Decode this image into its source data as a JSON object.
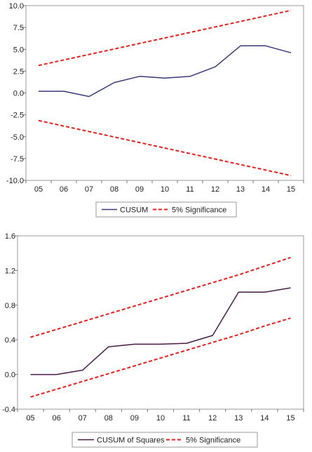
{
  "chart_data": [
    {
      "type": "line",
      "title": "",
      "xlabel": "",
      "ylabel": "",
      "categories": [
        "05",
        "06",
        "07",
        "08",
        "09",
        "10",
        "11",
        "12",
        "13",
        "14",
        "15"
      ],
      "ylim": [
        -10.0,
        10.0
      ],
      "yticks": [
        "10.0",
        "7.5",
        "5.0",
        "2.5",
        "0.0",
        "-2.5",
        "-5.0",
        "-7.5",
        "-10.0"
      ],
      "ytick_values": [
        10.0,
        7.5,
        5.0,
        2.5,
        0.0,
        -2.5,
        -5.0,
        -7.5,
        -10.0
      ],
      "grid": false,
      "legend_position": "bottom",
      "series": [
        {
          "name": "CUSUM",
          "color": "#3a3a7a",
          "style": "solid",
          "values": [
            0.2,
            0.2,
            -0.4,
            1.2,
            1.9,
            1.7,
            1.9,
            3.0,
            5.4,
            5.4,
            4.6
          ]
        },
        {
          "name": "5% Significance",
          "color": "#e8201c",
          "style": "dashed",
          "values": [
            3.15,
            3.78,
            4.41,
            5.04,
            5.67,
            6.3,
            6.93,
            7.56,
            8.19,
            8.82,
            9.45
          ]
        },
        {
          "name": "",
          "color": "#e8201c",
          "style": "dashed",
          "values": [
            -3.15,
            -3.78,
            -4.41,
            -5.04,
            -5.67,
            -6.3,
            -6.93,
            -7.56,
            -8.19,
            -8.82,
            -9.45
          ]
        }
      ],
      "legend": [
        {
          "label": "CUSUM",
          "color": "#3a3a7a",
          "style": "solid"
        },
        {
          "label": "5% Significance",
          "color": "#e8201c",
          "style": "dashed"
        }
      ]
    },
    {
      "type": "line",
      "title": "",
      "xlabel": "",
      "ylabel": "",
      "categories": [
        "05",
        "06",
        "07",
        "08",
        "09",
        "10",
        "11",
        "12",
        "13",
        "14",
        "15"
      ],
      "ylim": [
        -0.4,
        1.6
      ],
      "yticks": [
        "1.6",
        "1.2",
        "0.8",
        "0.4",
        "0.0",
        "-0.4"
      ],
      "ytick_values": [
        1.6,
        1.2,
        0.8,
        0.4,
        0.0,
        -0.4
      ],
      "grid": false,
      "legend_position": "bottom",
      "series": [
        {
          "name": "CUSUM of Squares",
          "color": "#4a1a4a",
          "style": "solid",
          "values": [
            0.0,
            0.0,
            0.05,
            0.32,
            0.35,
            0.35,
            0.36,
            0.45,
            0.95,
            0.95,
            1.0
          ]
        },
        {
          "name": "5% Significance",
          "color": "#e8201c",
          "style": "dashed",
          "values": [
            0.43,
            0.52,
            0.61,
            0.7,
            0.79,
            0.88,
            0.97,
            1.06,
            1.15,
            1.25,
            1.35
          ]
        },
        {
          "name": "",
          "color": "#e8201c",
          "style": "dashed",
          "values": [
            -0.26,
            -0.17,
            -0.08,
            0.01,
            0.1,
            0.19,
            0.28,
            0.37,
            0.46,
            0.56,
            0.65
          ]
        }
      ],
      "legend": [
        {
          "label": "CUSUM of Squares",
          "color": "#4a1a4a",
          "style": "solid"
        },
        {
          "label": "5% Significance",
          "color": "#e8201c",
          "style": "dashed"
        }
      ]
    }
  ]
}
